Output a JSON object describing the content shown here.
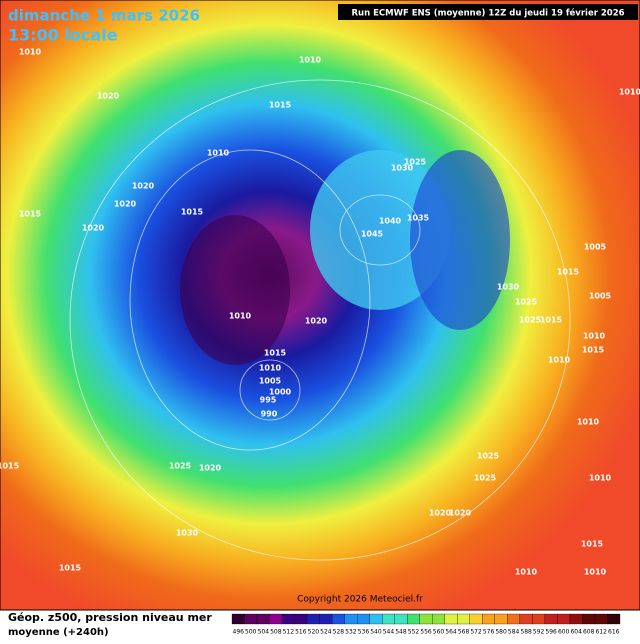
{
  "header": {
    "date": "dimanche 1 mars 2026",
    "time": "13:00 locale",
    "run": "Run ECMWF ENS (moyenne) 12Z du jeudi 19 février 2026"
  },
  "map": {
    "isobar_labels": [
      "1010",
      "1020",
      "1010",
      "1015",
      "1010",
      "1025",
      "1030",
      "1020",
      "1020",
      "1015",
      "1020",
      "1015",
      "1040",
      "1035",
      "1045",
      "1005",
      "1015",
      "1030",
      "1005",
      "1025",
      "1010",
      "1020",
      "1025",
      "1015",
      "1010",
      "1015",
      "1015",
      "1010",
      "1010",
      "1005",
      "1000",
      "995",
      "990",
      "1010",
      "1025",
      "1015",
      "1025",
      "1020",
      "1025",
      "1010",
      "1020",
      "1020",
      "1030",
      "1015",
      "1015",
      "1010",
      "1010",
      "1010"
    ],
    "copyright": "Copyright 2026 Meteociel.fr"
  },
  "footer": {
    "title": "Géop. z500, pression niveau mer",
    "subtitle": "moyenne  (+240h)",
    "scale": [
      496,
      500,
      504,
      508,
      512,
      516,
      520,
      524,
      528,
      532,
      536,
      540,
      544,
      548,
      552,
      556,
      560,
      564,
      568,
      572,
      576,
      580,
      584,
      588,
      592,
      596,
      600,
      604,
      608,
      612,
      616
    ]
  }
}
